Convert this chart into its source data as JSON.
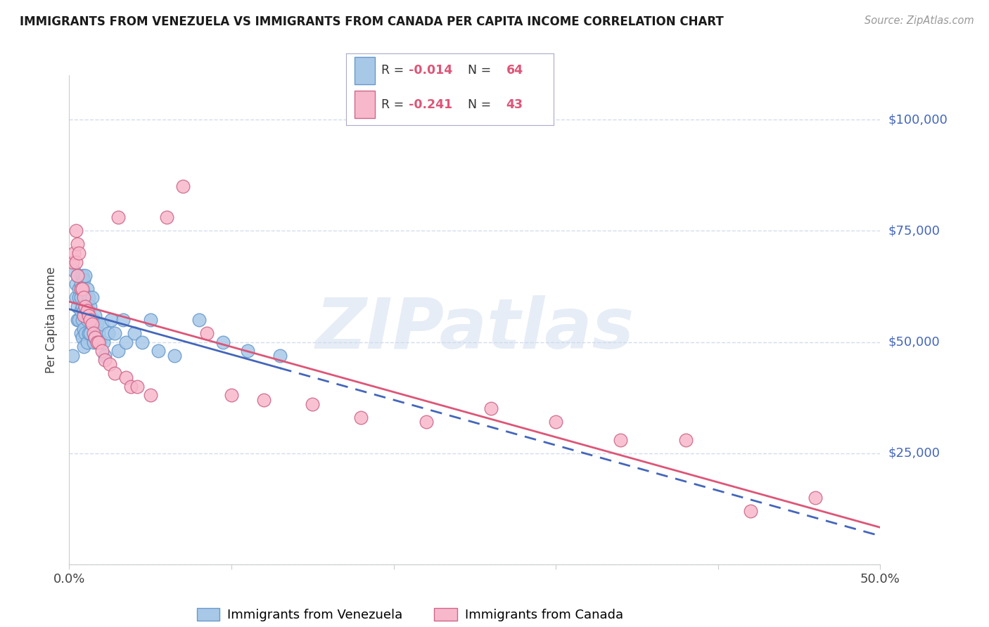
{
  "title": "IMMIGRANTS FROM VENEZUELA VS IMMIGRANTS FROM CANADA PER CAPITA INCOME CORRELATION CHART",
  "source": "Source: ZipAtlas.com",
  "ylabel": "Per Capita Income",
  "xlim": [
    0.0,
    0.5
  ],
  "ylim": [
    0,
    110000
  ],
  "background_color": "#ffffff",
  "grid_color": "#c8d4e8",
  "watermark": "ZIPatlas",
  "series1_color": "#a8c8e8",
  "series1_edge": "#6699cc",
  "series2_color": "#f8b8cc",
  "series2_edge": "#cc6688",
  "series1_label": "Immigrants from Venezuela",
  "series2_label": "Immigrants from Canada",
  "series1_line_color": "#4466bb",
  "series2_line_color": "#dd5577",
  "legend_R1_val": "-0.014",
  "legend_N1_val": "64",
  "legend_R2_val": "-0.241",
  "legend_N2_val": "43",
  "venezuela_x": [
    0.002,
    0.003,
    0.004,
    0.004,
    0.005,
    0.005,
    0.005,
    0.006,
    0.006,
    0.006,
    0.007,
    0.007,
    0.007,
    0.007,
    0.008,
    0.008,
    0.008,
    0.008,
    0.008,
    0.009,
    0.009,
    0.009,
    0.009,
    0.009,
    0.01,
    0.01,
    0.01,
    0.01,
    0.011,
    0.011,
    0.011,
    0.011,
    0.012,
    0.012,
    0.012,
    0.013,
    0.013,
    0.014,
    0.014,
    0.015,
    0.015,
    0.016,
    0.016,
    0.017,
    0.018,
    0.019,
    0.02,
    0.021,
    0.022,
    0.024,
    0.026,
    0.028,
    0.03,
    0.033,
    0.035,
    0.04,
    0.045,
    0.05,
    0.055,
    0.065,
    0.08,
    0.095,
    0.11,
    0.13
  ],
  "venezuela_y": [
    47000,
    66000,
    63000,
    60000,
    65000,
    58000,
    55000,
    62000,
    60000,
    55000,
    63000,
    60000,
    57000,
    52000,
    65000,
    62000,
    58000,
    55000,
    51000,
    64000,
    61000,
    57000,
    53000,
    49000,
    65000,
    60000,
    56000,
    52000,
    62000,
    59000,
    55000,
    50000,
    60000,
    57000,
    52000,
    58000,
    52000,
    60000,
    55000,
    55000,
    50000,
    56000,
    51000,
    54000,
    52000,
    50000,
    54000,
    50000,
    47000,
    52000,
    55000,
    52000,
    48000,
    55000,
    50000,
    52000,
    50000,
    55000,
    48000,
    47000,
    55000,
    50000,
    48000,
    47000
  ],
  "canada_x": [
    0.002,
    0.003,
    0.004,
    0.004,
    0.005,
    0.005,
    0.006,
    0.007,
    0.008,
    0.009,
    0.009,
    0.01,
    0.011,
    0.012,
    0.013,
    0.014,
    0.015,
    0.016,
    0.017,
    0.018,
    0.02,
    0.022,
    0.025,
    0.028,
    0.03,
    0.035,
    0.038,
    0.042,
    0.05,
    0.06,
    0.07,
    0.085,
    0.1,
    0.12,
    0.15,
    0.18,
    0.22,
    0.26,
    0.3,
    0.34,
    0.38,
    0.42,
    0.46
  ],
  "canada_y": [
    68000,
    70000,
    75000,
    68000,
    72000,
    65000,
    70000,
    62000,
    62000,
    60000,
    56000,
    58000,
    57000,
    56000,
    55000,
    54000,
    52000,
    51000,
    50000,
    50000,
    48000,
    46000,
    45000,
    43000,
    78000,
    42000,
    40000,
    40000,
    38000,
    78000,
    85000,
    52000,
    38000,
    37000,
    36000,
    33000,
    32000,
    35000,
    32000,
    28000,
    28000,
    12000,
    15000
  ]
}
